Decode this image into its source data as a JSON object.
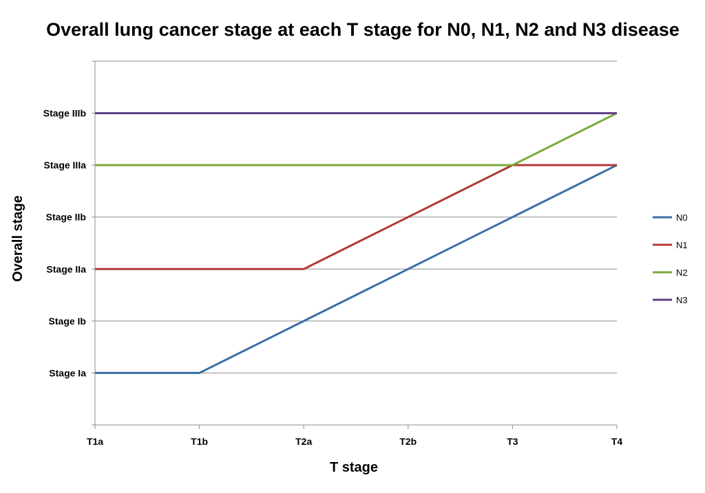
{
  "chart_data": {
    "type": "line",
    "title": "Overall lung cancer stage at each T stage for N0, N1, N2 and N3 disease",
    "xlabel": "T stage",
    "ylabel": "Overall stage",
    "categories": [
      "T1a",
      "T1b",
      "T2a",
      "T2b",
      "T3",
      "T4"
    ],
    "y_categories": [
      "Stage Ia",
      "Stage Ib",
      "Stage IIa",
      "Stage IIb",
      "Stage IIIa",
      "Stage IIIb"
    ],
    "ylim": [
      0,
      7
    ],
    "grid": true,
    "legend_position": "right",
    "series": [
      {
        "name": "N0",
        "color": "#3a6ea5",
        "values": [
          "Stage Ia",
          "Stage Ia",
          "Stage Ib",
          "Stage IIa",
          "Stage IIb",
          "Stage IIIa"
        ]
      },
      {
        "name": "N1",
        "color": "#b03a36",
        "values": [
          "Stage IIa",
          "Stage IIa",
          "Stage IIa",
          "Stage IIb",
          "Stage IIIa",
          "Stage IIIa"
        ]
      },
      {
        "name": "N2",
        "color": "#7ca83a",
        "values": [
          "Stage IIIa",
          "Stage IIIa",
          "Stage IIIa",
          "Stage IIIa",
          "Stage IIIa",
          "Stage IIIb"
        ]
      },
      {
        "name": "N3",
        "color": "#5b3f86",
        "values": [
          "Stage IIIb",
          "Stage IIIb",
          "Stage IIIb",
          "Stage IIIb",
          "Stage IIIb",
          "Stage IIIb"
        ]
      }
    ]
  }
}
